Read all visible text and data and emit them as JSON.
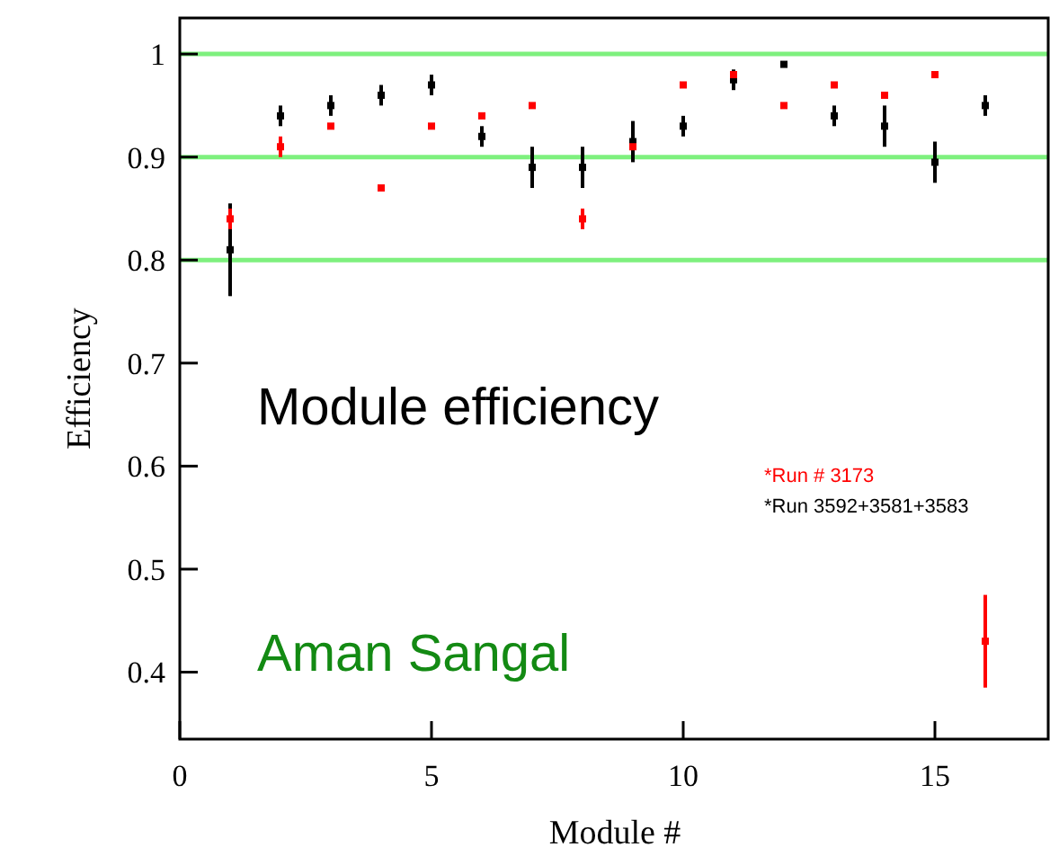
{
  "chart_data": {
    "type": "scatter",
    "xlabel": "Module #",
    "ylabel": "Efficiency",
    "x": [
      1,
      2,
      3,
      4,
      5,
      6,
      7,
      8,
      9,
      10,
      11,
      12,
      13,
      14,
      15,
      16
    ],
    "series": [
      {
        "name": "*Run # 3173",
        "color": "#ff0000",
        "values": [
          0.84,
          0.91,
          0.93,
          0.87,
          0.93,
          0.94,
          0.95,
          0.84,
          0.91,
          0.97,
          0.98,
          0.95,
          0.97,
          0.96,
          0.98,
          0.43
        ],
        "errors": [
          0.01,
          0.01,
          null,
          null,
          null,
          null,
          null,
          0.01,
          null,
          null,
          null,
          null,
          null,
          null,
          null,
          0.045
        ]
      },
      {
        "name": "*Run 3592+3581+3583",
        "color": "#000000",
        "values": [
          0.81,
          0.94,
          0.95,
          0.96,
          0.97,
          0.92,
          0.89,
          0.89,
          0.915,
          0.93,
          0.975,
          0.99,
          0.94,
          0.93,
          0.895,
          0.95
        ],
        "errors": [
          0.045,
          0.01,
          0.01,
          0.01,
          0.01,
          0.01,
          0.02,
          0.02,
          0.02,
          0.01,
          0.01,
          null,
          0.01,
          0.02,
          0.02,
          0.01
        ]
      }
    ],
    "xlim": [
      0,
      17.25
    ],
    "xticks": [
      0,
      5,
      10,
      15
    ],
    "ylim": [
      0.335,
      1.035
    ],
    "yticks": [
      0.4,
      0.5,
      0.6,
      0.7,
      0.8,
      0.9,
      1
    ],
    "ref_lines": [
      {
        "axis": "y",
        "value": 1,
        "color": "#7ef07e"
      },
      {
        "axis": "y",
        "value": 0.9,
        "color": "#7ef07e"
      },
      {
        "axis": "y",
        "value": 0.8,
        "color": "#7ef07e"
      }
    ],
    "annotations": [
      "Module efficiency",
      "Aman Sangal"
    ],
    "legend": "right",
    "marker": "square",
    "grid": false
  }
}
